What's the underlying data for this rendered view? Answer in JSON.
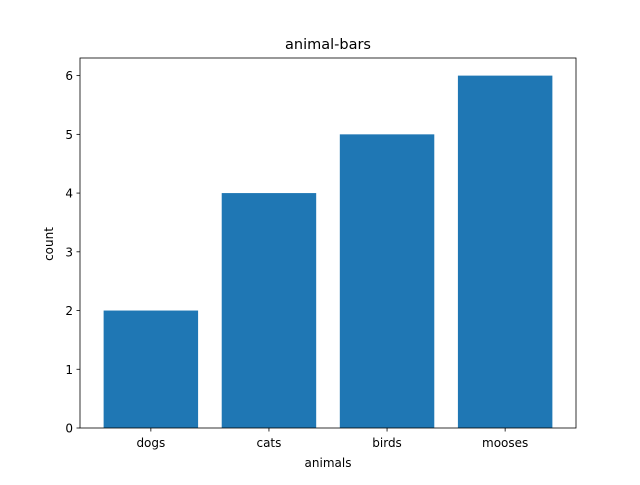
{
  "chart_data": {
    "type": "bar",
    "title": "animal-bars",
    "xlabel": "animals",
    "ylabel": "count",
    "categories": [
      "dogs",
      "cats",
      "birds",
      "mooses"
    ],
    "values": [
      2,
      4,
      5,
      6
    ],
    "ylim": [
      0,
      6.3
    ],
    "yticks": [
      0,
      1,
      2,
      3,
      4,
      5,
      6
    ],
    "grid": false,
    "legend": "none",
    "bar_color": "#1f77b4"
  }
}
